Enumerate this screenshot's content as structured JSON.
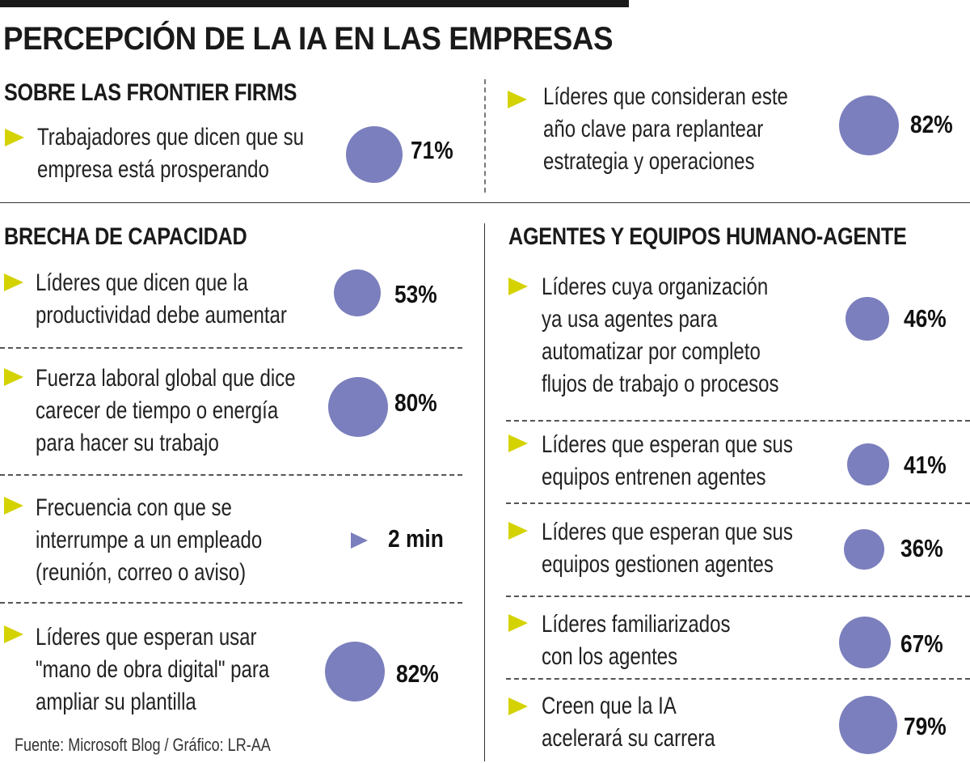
{
  "title": "PERCEPCIÓN DE LA IA EN LAS EMPRESAS",
  "source": "Fuente: Microsoft Blog / Gráfico: LR-AA",
  "colors": {
    "bubble": "#7b7fbd",
    "arrow": "#d4d200",
    "text": "#1a1a1a"
  },
  "sections": {
    "frontier": {
      "title": "SOBRE LAS FRONTIER FIRMS",
      "items": [
        {
          "lines": [
            "Trabajadores que dicen que su",
            "empresa está prosperando"
          ],
          "value": "71%"
        },
        {
          "lines": [
            "Líderes que consideran este",
            "año clave para replantear",
            "estrategia y operaciones"
          ],
          "value": "82%"
        }
      ]
    },
    "brecha": {
      "title": "BRECHA DE CAPACIDAD",
      "items": [
        {
          "lines": [
            "Líderes que dicen que la",
            "productividad debe aumentar"
          ],
          "value": "53%"
        },
        {
          "lines": [
            "Fuerza laboral global que dice",
            "carecer de tiempo o energía",
            "para hacer su trabajo"
          ],
          "value": "80%"
        },
        {
          "lines": [
            "Frecuencia con que se",
            "interrumpe a un empleado",
            "(reunión, correo o aviso)"
          ],
          "value": "2 min"
        },
        {
          "lines": [
            "Líderes que esperan usar",
            "\"mano de obra digital\" para",
            "ampliar su plantilla"
          ],
          "value": "82%"
        }
      ]
    },
    "agentes": {
      "title": "AGENTES Y EQUIPOS HUMANO-AGENTE",
      "items": [
        {
          "lines": [
            "Líderes cuya organización",
            "ya usa agentes para",
            "automatizar por completo",
            "flujos de trabajo o procesos"
          ],
          "value": "46%"
        },
        {
          "lines": [
            "Líderes que esperan que sus",
            "equipos entrenen agentes"
          ],
          "value": "41%"
        },
        {
          "lines": [
            "Líderes que esperan que sus",
            "equipos gestionen agentes"
          ],
          "value": "36%"
        },
        {
          "lines": [
            "Líderes familiarizados",
            "con los agentes"
          ],
          "value": "67%"
        },
        {
          "lines": [
            "Creen que la IA",
            "acelerará su carrera"
          ],
          "value": "79%"
        }
      ]
    }
  },
  "chart_data": {
    "type": "bubble",
    "title": "PERCEPCIÓN DE LA IA EN LAS EMPRESAS",
    "unit": "%",
    "groups": [
      {
        "name": "SOBRE LAS FRONTIER FIRMS",
        "categories": [
          "Trabajadores que dicen que su empresa está prosperando",
          "Líderes que consideran este año clave para replantear estrategia y operaciones"
        ],
        "values": [
          71,
          82
        ]
      },
      {
        "name": "BRECHA DE CAPACIDAD",
        "categories": [
          "Líderes que dicen que la productividad debe aumentar",
          "Fuerza laboral global que dice carecer de tiempo o energía para hacer su trabajo",
          "Frecuencia con que se interrumpe a un empleado (reunión, correo o aviso)",
          "Líderes que esperan usar \"mano de obra digital\" para ampliar su plantilla"
        ],
        "values": [
          53,
          80,
          "2 min",
          82
        ]
      },
      {
        "name": "AGENTES Y EQUIPOS HUMANO-AGENTE",
        "categories": [
          "Líderes cuya organización ya usa agentes para automatizar por completo flujos de trabajo o procesos",
          "Líderes que esperan que sus equipos entrenen agentes",
          "Líderes que esperan que sus equipos gestionen agentes",
          "Líderes familiarizados con los agentes",
          "Creen que la IA acelerará su carrera"
        ],
        "values": [
          46,
          41,
          36,
          67,
          79
        ]
      }
    ]
  }
}
